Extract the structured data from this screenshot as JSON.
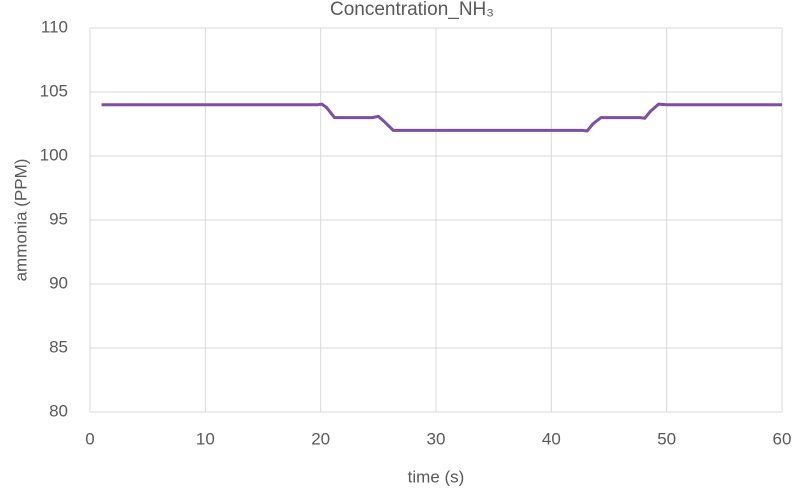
{
  "chart_data": {
    "type": "line",
    "title": "Concentration_NH₃",
    "x_label": "time (s)",
    "y_label": "ammonia (PPM)",
    "x": [
      1,
      19.7,
      20.1,
      20.5,
      21.2,
      24.5,
      25,
      25.5,
      26.3,
      42.7,
      43.1,
      43.6,
      44.3,
      47.7,
      48.1,
      48.6,
      49.3,
      50,
      60
    ],
    "series": [
      {
        "name": "ammonia",
        "color": "#7b4fa6",
        "values": [
          104,
          104,
          104.05,
          103.8,
          103,
          103,
          103.1,
          102.7,
          102,
          102,
          101.95,
          102.5,
          103,
          103,
          102.95,
          103.5,
          104.05,
          104,
          104
        ]
      }
    ],
    "xlim": [
      0,
      60
    ],
    "xticks": [
      0,
      10,
      20,
      30,
      40,
      50,
      60
    ],
    "ylim": [
      80,
      110
    ],
    "yticks": [
      80,
      85,
      90,
      95,
      100,
      105,
      110
    ],
    "grid": true
  }
}
